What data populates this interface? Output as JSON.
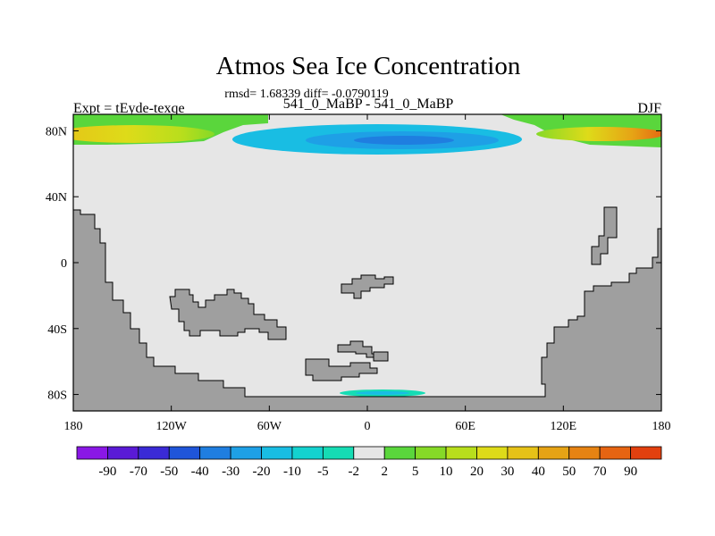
{
  "chart_data": {
    "type": "heatmap",
    "title": "Atmos Sea Ice Concentration",
    "stats_line": "rmsd= 1.68339 diff= -0.0790119",
    "left_label": "Expt = tEyde-texqe",
    "center_label": "541_0_MaBP - 541_0_MaBP",
    "right_label": "DJF",
    "x_ticks": [
      "180",
      "120W",
      "60W",
      "0",
      "60E",
      "120E",
      "180"
    ],
    "x_tick_values": [
      -180,
      -120,
      -60,
      0,
      60,
      120,
      180
    ],
    "y_ticks": [
      "80N",
      "40N",
      "0",
      "40S",
      "80S"
    ],
    "y_tick_values": [
      80,
      40,
      0,
      -40,
      -80
    ],
    "xlim": [
      -180,
      180
    ],
    "ylim": [
      -90,
      90
    ],
    "grid": false,
    "colorbar": {
      "labels": [
        "-90",
        "-70",
        "-50",
        "-40",
        "-30",
        "-20",
        "-10",
        "-5",
        "-2",
        "2",
        "5",
        "10",
        "20",
        "30",
        "40",
        "50",
        "70",
        "90"
      ],
      "colors": [
        "#8a17e6",
        "#5a1ad6",
        "#3a2ad6",
        "#1f55d9",
        "#1f7ee0",
        "#1ea0e6",
        "#19bde3",
        "#14d2cf",
        "#16dcb4",
        "#e6e6e6",
        "#5ad63c",
        "#86d927",
        "#b8de1c",
        "#dedb19",
        "#e6c217",
        "#e6a315",
        "#e68313",
        "#e66412",
        "#e2400f"
      ]
    },
    "land_color": "#9f9f9f",
    "ocean_color": "#e6e6e6",
    "field_regions": [
      {
        "name": "arctic-positive-west",
        "lon_range": [
          -180,
          -110
        ],
        "lat_range": [
          74,
          86
        ],
        "value_range": [
          5,
          40
        ]
      },
      {
        "name": "arctic-negative-center",
        "lon_range": [
          -95,
          95
        ],
        "lat_range": [
          72,
          88
        ],
        "value_range": [
          -40,
          -5
        ]
      },
      {
        "name": "arctic-positive-east",
        "lon_range": [
          105,
          180
        ],
        "lat_range": [
          74,
          86
        ],
        "value_range": [
          5,
          70
        ]
      },
      {
        "name": "antarctic-negative-coast",
        "lon_range": [
          -15,
          35
        ],
        "lat_range": [
          -82,
          -79
        ],
        "value_range": [
          -20,
          -5
        ]
      }
    ]
  }
}
